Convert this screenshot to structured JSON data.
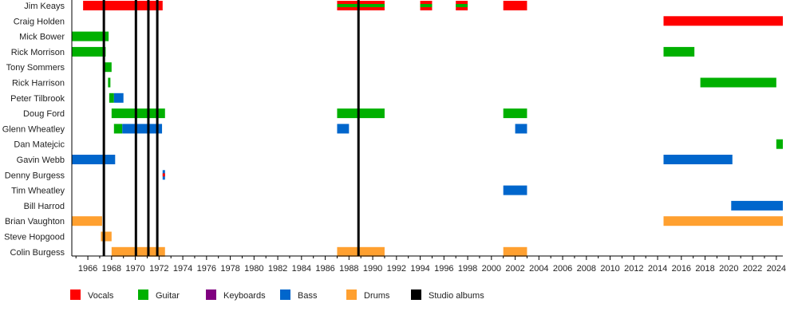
{
  "chart_data": {
    "type": "timeline",
    "xlim": [
      1964.65,
      2024.55
    ],
    "x_ticks": [
      1966,
      1968,
      1970,
      1972,
      1974,
      1976,
      1978,
      1980,
      1982,
      1984,
      1986,
      1988,
      1990,
      1992,
      1994,
      1996,
      1998,
      2000,
      2002,
      2004,
      2006,
      2008,
      2010,
      2012,
      2014,
      2016,
      2018,
      2020,
      2022,
      2024
    ],
    "colors": {
      "Vocals": "#ff0000",
      "Guitar": "#00b000",
      "Keyboards": "#800080",
      "Bass": "#0066cc",
      "Drums": "#ffa030",
      "Studio albums": "#000000"
    },
    "legend": [
      "Vocals",
      "Guitar",
      "Keyboards",
      "Bass",
      "Drums",
      "Studio albums"
    ],
    "legend_placement": "bottom",
    "studio_albums": [
      1967.35,
      1970.05,
      1971.1,
      1971.85,
      1988.8
    ],
    "members": [
      {
        "name": "Jim Keays",
        "spans": [
          {
            "role": "Vocals",
            "from": 1965.6,
            "to": 1972.3
          },
          {
            "role": "Vocals",
            "stripe": "Guitar",
            "from": 1987,
            "to": 1991
          },
          {
            "role": "Vocals",
            "stripe": "Guitar",
            "from": 1994,
            "to": 1995
          },
          {
            "role": "Vocals",
            "stripe": "Guitar",
            "from": 1997,
            "to": 1998
          },
          {
            "role": "Vocals",
            "from": 2001,
            "to": 2003
          }
        ]
      },
      {
        "name": "Craig Holden",
        "spans": [
          {
            "role": "Vocals",
            "from": 2014.5,
            "to": 2024.55
          }
        ]
      },
      {
        "name": "Mick Bower",
        "spans": [
          {
            "role": "Guitar",
            "from": 1964.65,
            "to": 1967.75
          }
        ]
      },
      {
        "name": "Rick Morrison",
        "spans": [
          {
            "role": "Guitar",
            "from": 1964.65,
            "to": 1967.5
          },
          {
            "role": "Guitar",
            "from": 2014.5,
            "to": 2017.1
          }
        ]
      },
      {
        "name": "Tony Sommers",
        "spans": [
          {
            "role": "Guitar",
            "from": 1967.4,
            "to": 1968
          }
        ]
      },
      {
        "name": "Rick Harrison",
        "spans": [
          {
            "role": "Guitar",
            "from": 1967.7,
            "to": 1967.9
          },
          {
            "role": "Guitar",
            "from": 2017.6,
            "to": 2024
          }
        ]
      },
      {
        "name": "Peter Tilbrook",
        "spans": [
          {
            "role": "Guitar",
            "from": 1967.8,
            "to": 1968.2
          },
          {
            "role": "Bass",
            "from": 1968.2,
            "to": 1969
          }
        ]
      },
      {
        "name": "Doug Ford",
        "spans": [
          {
            "role": "Guitar",
            "from": 1968,
            "to": 1972.5
          },
          {
            "role": "Guitar",
            "from": 1987,
            "to": 1991
          },
          {
            "role": "Guitar",
            "from": 2001,
            "to": 2003
          }
        ]
      },
      {
        "name": "Glenn Wheatley",
        "spans": [
          {
            "role": "Guitar",
            "from": 1968.2,
            "to": 1968.9
          },
          {
            "role": "Bass",
            "from": 1968.9,
            "to": 1972.25
          },
          {
            "role": "Bass",
            "from": 1987,
            "to": 1988
          },
          {
            "role": "Bass",
            "from": 2002,
            "to": 2003
          }
        ]
      },
      {
        "name": "Dan Matejcic",
        "spans": [
          {
            "role": "Guitar",
            "from": 2024,
            "to": 2024.55
          }
        ]
      },
      {
        "name": "Gavin Webb",
        "spans": [
          {
            "role": "Bass",
            "from": 1964.65,
            "to": 1968.3
          },
          {
            "role": "Bass",
            "from": 2014.5,
            "to": 2020.3
          }
        ]
      },
      {
        "name": "Denny Burgess",
        "spans": [
          {
            "role": "Bass",
            "stripe": "Vocals",
            "from": 1972.3,
            "to": 1972.5
          }
        ]
      },
      {
        "name": "Tim Wheatley",
        "spans": [
          {
            "role": "Bass",
            "from": 2001,
            "to": 2003
          }
        ]
      },
      {
        "name": "Bill Harrod",
        "spans": [
          {
            "role": "Bass",
            "from": 2020.2,
            "to": 2024.55
          }
        ]
      },
      {
        "name": "Brian Vaughton",
        "spans": [
          {
            "role": "Drums",
            "from": 1964.65,
            "to": 1967.2
          },
          {
            "role": "Drums",
            "from": 2014.5,
            "to": 2024.55
          }
        ]
      },
      {
        "name": "Steve Hopgood",
        "spans": [
          {
            "role": "Drums",
            "from": 1967.1,
            "to": 1968
          }
        ]
      },
      {
        "name": "Colin Burgess",
        "spans": [
          {
            "role": "Drums",
            "from": 1968,
            "to": 1972.5
          },
          {
            "role": "Drums",
            "from": 1987,
            "to": 1991
          },
          {
            "role": "Drums",
            "from": 2001,
            "to": 2003
          }
        ]
      }
    ]
  }
}
